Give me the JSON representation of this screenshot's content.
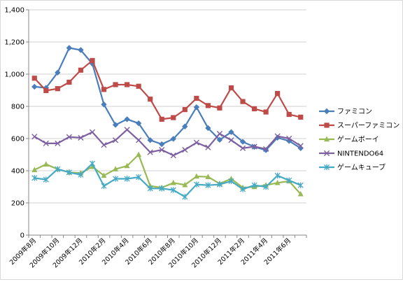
{
  "chart_data": {
    "type": "line",
    "title": "",
    "xlabel": "",
    "ylabel": "",
    "ylim": [
      0,
      1400
    ],
    "y_ticks": [
      "0",
      "200",
      "400",
      "600",
      "800",
      "1,000",
      "1,200",
      "1,400"
    ],
    "y_tick_values": [
      0,
      200,
      400,
      600,
      800,
      1000,
      1200,
      1400
    ],
    "grid": true,
    "legend_position": "right",
    "categories": [
      "2009年8月",
      "2009年9月",
      "2009年10月",
      "2009年11月",
      "2009年12月",
      "2010年1月",
      "2010年2月",
      "2010年3月",
      "2010年4月",
      "2010年5月",
      "2010年6月",
      "2010年7月",
      "2010年8月",
      "2010年9月",
      "2010年10月",
      "2010年11月",
      "2010年12月",
      "2011年1月",
      "2011年2月",
      "2011年3月",
      "2011年4月",
      "2011年5月",
      "2011年6月",
      "2011年7月"
    ],
    "x_tick_labels": [
      "2009年8月",
      "",
      "2009年10月",
      "",
      "2009年12月",
      "",
      "2010年2月",
      "",
      "2010年4月",
      "",
      "2010年6月",
      "",
      "2010年8月",
      "",
      "2010年10月",
      "",
      "2010年12月",
      "",
      "2011年2月",
      "",
      "2011年4月",
      "",
      "2011年6月",
      ""
    ],
    "series": [
      {
        "name": "ファミコン",
        "color": "#4a7ebb",
        "marker": "diamond",
        "values": [
          922,
          915,
          1010,
          1163,
          1150,
          1065,
          812,
          685,
          720,
          695,
          590,
          565,
          598,
          675,
          795,
          665,
          592,
          640,
          580,
          548,
          528,
          605,
          585,
          540
        ]
      },
      {
        "name": "スーパーファミコン",
        "color": "#be4b48",
        "marker": "square",
        "values": [
          975,
          898,
          910,
          950,
          1025,
          1085,
          905,
          935,
          935,
          925,
          845,
          720,
          730,
          780,
          850,
          805,
          790,
          915,
          830,
          785,
          765,
          880,
          750,
          733
        ]
      },
      {
        "name": "ゲームボーイ",
        "color": "#98b954",
        "marker": "triangle",
        "values": [
          405,
          440,
          410,
          390,
          385,
          425,
          370,
          410,
          430,
          500,
          305,
          295,
          325,
          312,
          365,
          362,
          320,
          350,
          295,
          300,
          310,
          325,
          335,
          255
        ]
      },
      {
        "name": "NINTENDO64",
        "color": "#7d60a0",
        "marker": "x",
        "values": [
          612,
          570,
          570,
          610,
          605,
          640,
          560,
          590,
          655,
          590,
          515,
          530,
          495,
          530,
          575,
          545,
          630,
          590,
          540,
          550,
          535,
          615,
          600,
          555
        ]
      },
      {
        "name": "ゲームキューブ",
        "color": "#46aac5",
        "marker": "star",
        "values": [
          355,
          345,
          410,
          390,
          375,
          445,
          305,
          350,
          350,
          360,
          290,
          290,
          280,
          238,
          315,
          310,
          315,
          335,
          285,
          310,
          300,
          370,
          340,
          310
        ]
      }
    ]
  }
}
